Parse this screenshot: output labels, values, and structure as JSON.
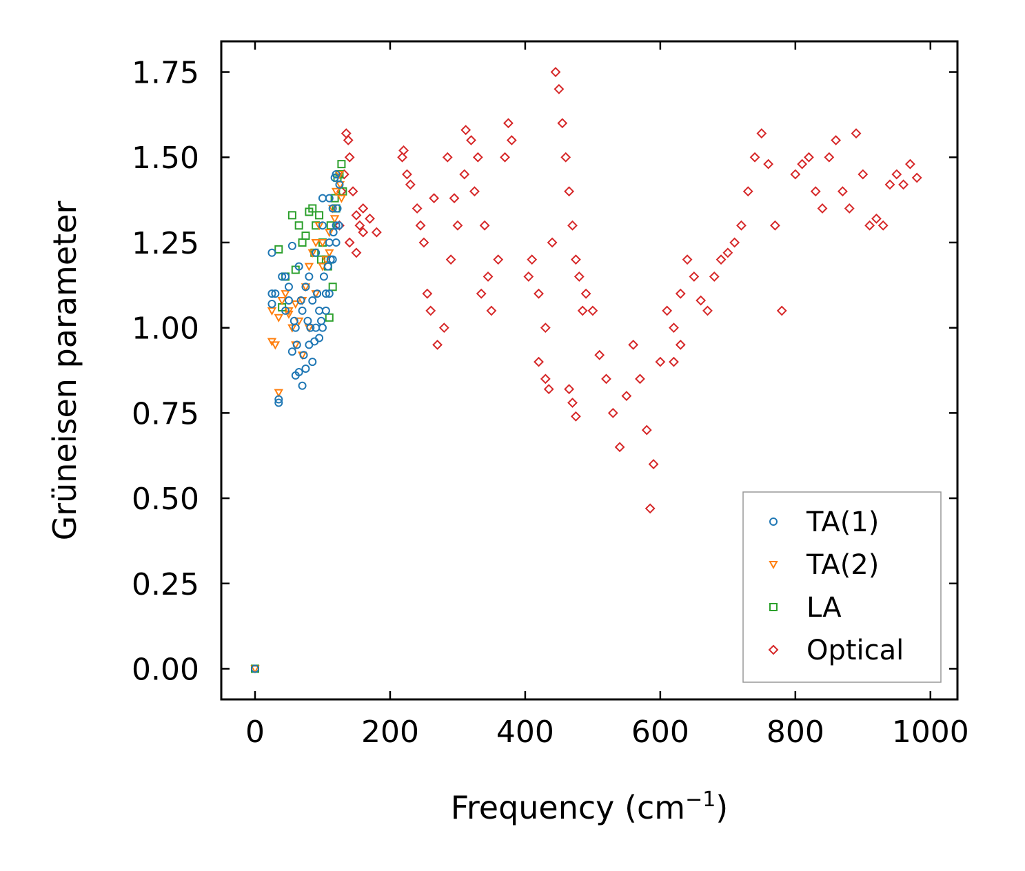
{
  "chart_data": {
    "type": "scatter",
    "title": "",
    "xlabel": "Frequency (cm",
    "xlabel_sup": "−1",
    "xlabel_end": ")",
    "ylabel": "Grüneisen parameter",
    "xlim": [
      -50,
      1040
    ],
    "ylim": [
      -0.09,
      1.84
    ],
    "xticks": [
      0,
      200,
      400,
      600,
      800,
      1000
    ],
    "xtick_labels": [
      "0",
      "200",
      "400",
      "600",
      "800",
      "1000"
    ],
    "yticks": [
      0,
      0.25,
      0.5,
      0.75,
      1.0,
      1.25,
      1.5,
      1.75
    ],
    "ytick_labels": [
      "0.00",
      "0.25",
      "0.50",
      "0.75",
      "1.00",
      "1.25",
      "1.50",
      "1.75"
    ],
    "grid": false,
    "legend_position": "lower-right",
    "series": [
      {
        "name": "TA(1)",
        "marker": "circle",
        "color": "#1f77b4",
        "points": [
          [
            0,
            0
          ],
          [
            25,
            1.22
          ],
          [
            25,
            1.1
          ],
          [
            25,
            1.07
          ],
          [
            35,
            0.78
          ],
          [
            35,
            0.79
          ],
          [
            40,
            1.15
          ],
          [
            45,
            1.15
          ],
          [
            50,
            1.12
          ],
          [
            55,
            0.93
          ],
          [
            60,
            0.86
          ],
          [
            65,
            0.87
          ],
          [
            70,
            0.83
          ],
          [
            75,
            0.88
          ],
          [
            80,
            0.95
          ],
          [
            85,
            0.9
          ],
          [
            90,
            1.0
          ],
          [
            95,
            0.97
          ],
          [
            100,
            1.0
          ],
          [
            105,
            1.05
          ],
          [
            110,
            1.1
          ],
          [
            115,
            1.2
          ],
          [
            120,
            1.3
          ],
          [
            125,
            1.42
          ],
          [
            55,
            1.24
          ],
          [
            65,
            1.18
          ],
          [
            75,
            1.12
          ],
          [
            85,
            1.08
          ],
          [
            95,
            1.05
          ],
          [
            105,
            1.1
          ],
          [
            110,
            1.25
          ],
          [
            115,
            1.35
          ],
          [
            120,
            1.45
          ],
          [
            60,
            1.0
          ],
          [
            70,
            1.05
          ],
          [
            80,
            1.15
          ],
          [
            90,
            1.22
          ],
          [
            100,
            1.3
          ],
          [
            110,
            1.38
          ],
          [
            118,
            1.44
          ],
          [
            50,
            1.08
          ],
          [
            62,
            0.95
          ],
          [
            72,
            0.92
          ],
          [
            82,
            1.0
          ],
          [
            92,
            1.1
          ],
          [
            102,
            1.15
          ],
          [
            112,
            1.2
          ],
          [
            122,
            1.35
          ],
          [
            124,
            1.3
          ],
          [
            116,
            1.28
          ],
          [
            108,
            1.18
          ],
          [
            98,
            1.02
          ],
          [
            88,
            0.96
          ],
          [
            78,
            1.02
          ],
          [
            68,
            1.08
          ],
          [
            58,
            1.02
          ],
          [
            45,
            1.05
          ],
          [
            30,
            1.1
          ],
          [
            100,
            1.38
          ],
          [
            120,
            1.25
          ]
        ]
      },
      {
        "name": "TA(2)",
        "marker": "triangle-down",
        "color": "#ff7f0e",
        "points": [
          [
            0,
            0
          ],
          [
            25,
            1.05
          ],
          [
            25,
            0.96
          ],
          [
            30,
            0.95
          ],
          [
            35,
            0.81
          ],
          [
            35,
            1.03
          ],
          [
            40,
            1.08
          ],
          [
            45,
            1.1
          ],
          [
            50,
            1.05
          ],
          [
            55,
            1.0
          ],
          [
            60,
            0.95
          ],
          [
            65,
            1.02
          ],
          [
            70,
            1.08
          ],
          [
            75,
            1.12
          ],
          [
            80,
            1.18
          ],
          [
            85,
            1.22
          ],
          [
            90,
            1.25
          ],
          [
            95,
            1.3
          ],
          [
            100,
            1.25
          ],
          [
            105,
            1.2
          ],
          [
            110,
            1.28
          ],
          [
            115,
            1.35
          ],
          [
            120,
            1.4
          ],
          [
            125,
            1.45
          ],
          [
            128,
            1.38
          ],
          [
            50,
            1.04
          ],
          [
            60,
            1.07
          ],
          [
            70,
            0.92
          ],
          [
            80,
            1.0
          ],
          [
            90,
            1.1
          ],
          [
            100,
            1.18
          ],
          [
            110,
            1.22
          ],
          [
            118,
            1.32
          ],
          [
            126,
            1.42
          ]
        ]
      },
      {
        "name": "LA",
        "marker": "square",
        "color": "#2ca02c",
        "points": [
          [
            0,
            0
          ],
          [
            35,
            1.23
          ],
          [
            40,
            1.06
          ],
          [
            45,
            1.15
          ],
          [
            55,
            1.33
          ],
          [
            60,
            1.17
          ],
          [
            65,
            1.3
          ],
          [
            70,
            1.25
          ],
          [
            75,
            1.27
          ],
          [
            80,
            1.34
          ],
          [
            85,
            1.35
          ],
          [
            90,
            1.3
          ],
          [
            95,
            1.33
          ],
          [
            100,
            1.25
          ],
          [
            105,
            1.2
          ],
          [
            110,
            1.03
          ],
          [
            115,
            1.12
          ],
          [
            120,
            1.35
          ],
          [
            125,
            1.45
          ],
          [
            128,
            1.48
          ],
          [
            130,
            1.4
          ],
          [
            112,
            1.3
          ],
          [
            118,
            1.38
          ],
          [
            122,
            1.44
          ],
          [
            108,
            1.18
          ],
          [
            98,
            1.2
          ],
          [
            88,
            1.22
          ]
        ]
      },
      {
        "name": "Optical",
        "marker": "diamond",
        "color": "#d62728",
        "points": [
          [
            125,
            1.3
          ],
          [
            128,
            1.4
          ],
          [
            132,
            1.45
          ],
          [
            135,
            1.57
          ],
          [
            138,
            1.55
          ],
          [
            140,
            1.5
          ],
          [
            145,
            1.4
          ],
          [
            150,
            1.33
          ],
          [
            155,
            1.3
          ],
          [
            160,
            1.28
          ],
          [
            170,
            1.32
          ],
          [
            180,
            1.28
          ],
          [
            140,
            1.25
          ],
          [
            150,
            1.22
          ],
          [
            160,
            1.35
          ],
          [
            218,
            1.5
          ],
          [
            220,
            1.52
          ],
          [
            230,
            1.42
          ],
          [
            240,
            1.35
          ],
          [
            250,
            1.25
          ],
          [
            255,
            1.1
          ],
          [
            260,
            1.05
          ],
          [
            270,
            0.95
          ],
          [
            280,
            1.0
          ],
          [
            290,
            1.2
          ],
          [
            300,
            1.3
          ],
          [
            310,
            1.45
          ],
          [
            320,
            1.55
          ],
          [
            330,
            1.5
          ],
          [
            340,
            1.3
          ],
          [
            345,
            1.15
          ],
          [
            350,
            1.05
          ],
          [
            360,
            1.2
          ],
          [
            370,
            1.5
          ],
          [
            375,
            1.6
          ],
          [
            380,
            1.55
          ],
          [
            312,
            1.58
          ],
          [
            285,
            1.5
          ],
          [
            265,
            1.38
          ],
          [
            245,
            1.3
          ],
          [
            225,
            1.45
          ],
          [
            295,
            1.38
          ],
          [
            325,
            1.4
          ],
          [
            335,
            1.1
          ],
          [
            405,
            1.15
          ],
          [
            410,
            1.2
          ],
          [
            420,
            1.1
          ],
          [
            430,
            1.0
          ],
          [
            435,
            0.82
          ],
          [
            440,
            1.25
          ],
          [
            445,
            1.75
          ],
          [
            450,
            1.7
          ],
          [
            455,
            1.6
          ],
          [
            460,
            1.5
          ],
          [
            465,
            1.4
          ],
          [
            470,
            1.3
          ],
          [
            475,
            1.2
          ],
          [
            480,
            1.15
          ],
          [
            485,
            1.05
          ],
          [
            490,
            1.1
          ],
          [
            500,
            1.05
          ],
          [
            510,
            0.92
          ],
          [
            520,
            0.85
          ],
          [
            530,
            0.75
          ],
          [
            540,
            0.65
          ],
          [
            550,
            0.8
          ],
          [
            560,
            0.95
          ],
          [
            570,
            0.85
          ],
          [
            580,
            0.7
          ],
          [
            585,
            0.47
          ],
          [
            590,
            0.6
          ],
          [
            600,
            0.9
          ],
          [
            610,
            1.05
          ],
          [
            620,
            1.0
          ],
          [
            630,
            1.1
          ],
          [
            640,
            1.2
          ],
          [
            650,
            1.15
          ],
          [
            660,
            1.08
          ],
          [
            670,
            1.05
          ],
          [
            680,
            1.15
          ],
          [
            690,
            1.2
          ],
          [
            700,
            1.22
          ],
          [
            710,
            1.25
          ],
          [
            720,
            1.3
          ],
          [
            730,
            1.4
          ],
          [
            740,
            1.5
          ],
          [
            750,
            1.57
          ],
          [
            760,
            1.48
          ],
          [
            770,
            1.3
          ],
          [
            780,
            1.05
          ],
          [
            800,
            1.45
          ],
          [
            810,
            1.48
          ],
          [
            820,
            1.5
          ],
          [
            830,
            1.4
          ],
          [
            840,
            1.35
          ],
          [
            850,
            1.5
          ],
          [
            860,
            1.55
          ],
          [
            870,
            1.4
          ],
          [
            880,
            1.35
          ],
          [
            890,
            1.57
          ],
          [
            900,
            1.45
          ],
          [
            910,
            1.3
          ],
          [
            920,
            1.32
          ],
          [
            930,
            1.3
          ],
          [
            940,
            1.42
          ],
          [
            950,
            1.45
          ],
          [
            960,
            1.42
          ],
          [
            970,
            1.48
          ],
          [
            980,
            1.44
          ],
          [
            475,
            0.74
          ],
          [
            470,
            0.78
          ],
          [
            430,
            0.85
          ],
          [
            420,
            0.9
          ],
          [
            465,
            0.82
          ],
          [
            620,
            0.9
          ],
          [
            630,
            0.95
          ]
        ]
      }
    ]
  }
}
